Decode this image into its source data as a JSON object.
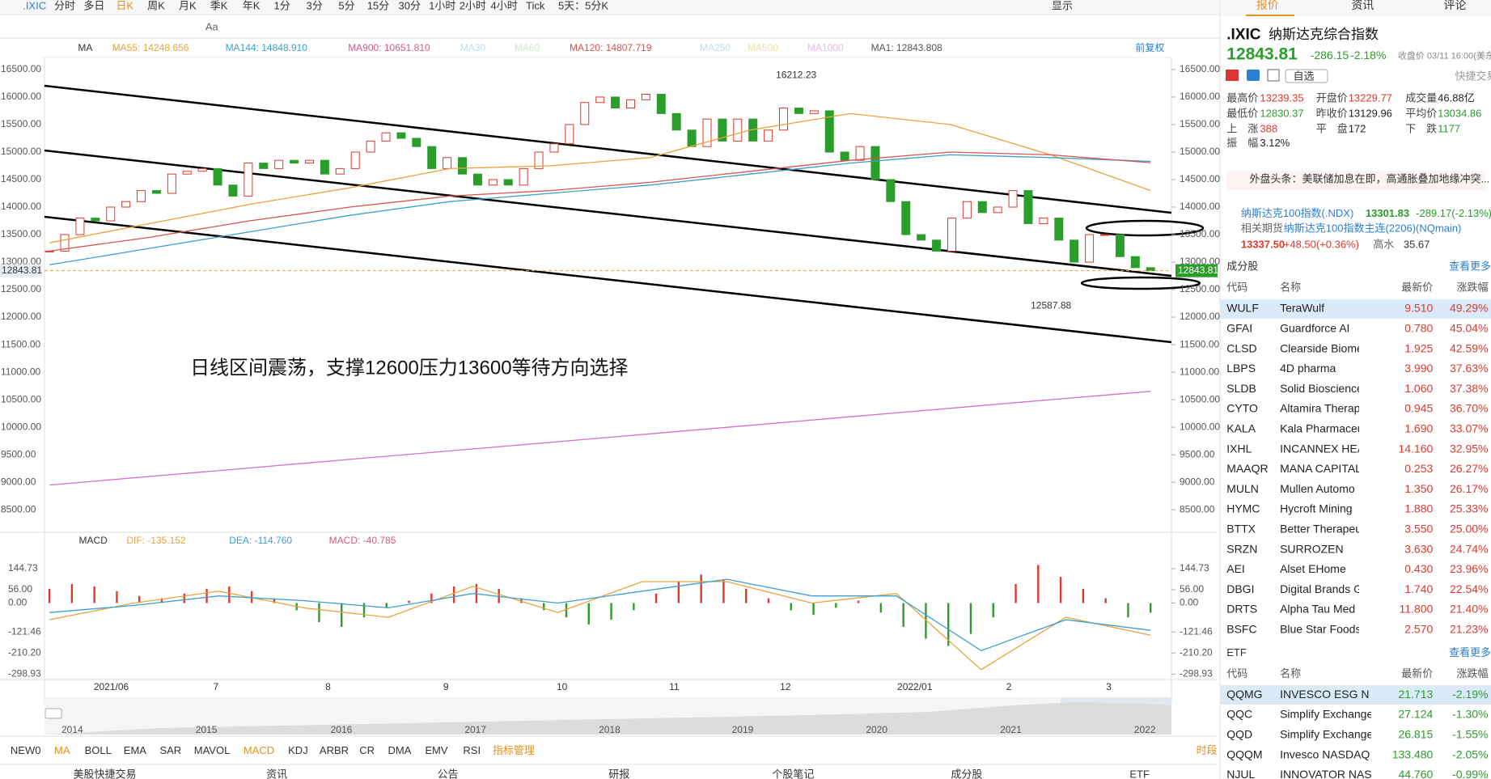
{
  "toolbar": {
    "symbol": ".IXIC",
    "periods": [
      "分时",
      "多日",
      "日K",
      "周K",
      "月K",
      "季K",
      "年K",
      "1分",
      "3分",
      "5分",
      "15分",
      "30分",
      "1小时",
      "2小时",
      "4小时",
      "Tick",
      "5天：5分K"
    ],
    "drawing_text": "Aa",
    "display": "显示"
  },
  "indicators": {
    "ma": "MA",
    "items": [
      {
        "text": "MA55: 14248.656",
        "color": "#e8a33c"
      },
      {
        "text": "MA144: 14848.910",
        "color": "#3aa0d0"
      },
      {
        "text": "MA900: 10651.810",
        "color": "#d4588a"
      },
      {
        "text": "MA30",
        "color": "#b8dff0"
      },
      {
        "text": "MA60",
        "color": "#c8e8c8"
      },
      {
        "text": "MA120: 14807.719",
        "color": "#d9534f"
      },
      {
        "text": "MA250",
        "color": "#b8dff0"
      },
      {
        "text": "MA500",
        "color": "#f0dca8"
      },
      {
        "text": "MA1000",
        "color": "#f0b8d8"
      },
      {
        "text": "MA1: 12843.808",
        "color": "#555555"
      }
    ],
    "adjust": "前复权"
  },
  "chart_data": [
    {
      "type": "candlestick",
      "up_color": "#e0382c",
      "down_color": "#2a9d2a",
      "closes": [
        13200,
        13500,
        13800,
        13750,
        14000,
        14100,
        14300,
        14250,
        14600,
        14650,
        14700,
        14400,
        14200,
        14800,
        14700,
        14850,
        14800,
        14850,
        14600,
        14700,
        15000,
        15200,
        15350,
        15250,
        15100,
        14700,
        14900,
        14600,
        14400,
        14500,
        14400,
        14700,
        15000,
        15150,
        15500,
        15900,
        16000,
        15800,
        15950,
        16050,
        15700,
        15400,
        15100,
        15600,
        15200,
        15600,
        15200,
        15400,
        15800,
        15700,
        15750,
        15000,
        14850,
        15100,
        14500,
        14100,
        13500,
        13400,
        13200,
        13800,
        14100,
        13900,
        14000,
        14300,
        13700,
        13800,
        13400,
        13000,
        13500,
        13500,
        13100,
        12900,
        12843.81
      ],
      "ma_lines": [
        {
          "color": "#e8a33c",
          "values": [
            13350,
            13700,
            14050,
            14350,
            14700,
            14750,
            14900,
            15400,
            15700,
            15500,
            14950,
            14300
          ]
        },
        {
          "color": "#3aa0d0",
          "values": [
            12950,
            13250,
            13550,
            13850,
            14100,
            14250,
            14400,
            14600,
            14800,
            14950,
            14900,
            14830
          ]
        },
        {
          "color": "#d9534f",
          "values": [
            13200,
            13450,
            13750,
            14000,
            14200,
            14300,
            14450,
            14650,
            14850,
            15000,
            14950,
            14807
          ]
        },
        {
          "color": "#d070d0",
          "values": [
            8950,
            9105,
            9260,
            9415,
            9570,
            9725,
            9880,
            10035,
            10190,
            10345,
            10500,
            10652
          ]
        }
      ],
      "ylim": [
        8140,
        16640
      ],
      "yticks": [
        {
          "value": 16500,
          "label": "16500.00"
        },
        {
          "value": 16000,
          "label": "16000.00"
        },
        {
          "value": 15500,
          "label": "15500.00"
        },
        {
          "value": 15000,
          "label": "15000.00"
        },
        {
          "value": 14500,
          "label": "14500.00"
        },
        {
          "value": 14000,
          "label": "14000.00"
        },
        {
          "value": 13500,
          "label": "13500.00"
        },
        {
          "value": 13000,
          "label": "13000.00"
        },
        {
          "value": 12500,
          "label": "12500.00"
        },
        {
          "value": 12000,
          "label": "12000.00"
        },
        {
          "value": 11500,
          "label": "11500.00"
        },
        {
          "value": 11000,
          "label": "11000.00"
        },
        {
          "value": 10500,
          "label": "10500.00"
        },
        {
          "value": 10000,
          "label": "10000.00"
        },
        {
          "value": 9500,
          "label": "9500.00"
        },
        {
          "value": 9000,
          "label": "9000.00"
        },
        {
          "value": 8500,
          "label": "8500.00"
        }
      ],
      "x_labels": [
        "2021/06",
        "7",
        "8",
        "9",
        "10",
        "11",
        "12",
        "2022/01",
        "2",
        "3"
      ],
      "high": 16212.23,
      "low": 12587.88,
      "last": 12843.81,
      "note": "日线区间震荡，支撑12600压力13600等待方向选择"
    },
    {
      "type": "macd",
      "title": "MACD",
      "dif_label": "DIF: -135.152",
      "dea_label": "DEA: -114.760",
      "macd_label": "MACD: -40.785",
      "dif_color": "#e8a33c",
      "dea_color": "#3aa0d0",
      "macd_color": "#d4588a",
      "ylim": [
        -327,
        177
      ],
      "yticks": [
        144.73,
        {
          "value": 56,
          "label": "56.00"
        },
        {
          "value": 0,
          "label": "0.00"
        },
        -121.46,
        {
          "value": -210.2,
          "label": "-210.20"
        },
        -298.93
      ],
      "histogram": [
        60,
        80,
        70,
        50,
        30,
        20,
        40,
        60,
        70,
        50,
        20,
        -30,
        -80,
        -100,
        -60,
        -20,
        10,
        40,
        70,
        80,
        60,
        20,
        -30,
        -60,
        -90,
        -70,
        -30,
        40,
        90,
        120,
        100,
        60,
        20,
        -30,
        -50,
        -20,
        10,
        -40,
        -100,
        -150,
        -180,
        -130,
        -60,
        80,
        160,
        110,
        60,
        20,
        -60,
        -40.785
      ],
      "dif": [
        -70,
        0,
        50,
        -20,
        -60,
        70,
        -40,
        90,
        90,
        0,
        40,
        -280,
        -60,
        -135.152
      ],
      "dea": [
        -40,
        -10,
        30,
        10,
        -20,
        40,
        0,
        50,
        100,
        30,
        30,
        -200,
        -70,
        -114.76
      ]
    }
  ],
  "overview": {
    "years": [
      "2014",
      "2015",
      "2016",
      "2017",
      "2018",
      "2019",
      "2020",
      "2021",
      "2022"
    ]
  },
  "indicator_tabs": {
    "items": [
      {
        "text": "NEW0",
        "active": false
      },
      {
        "text": "MA",
        "active": true
      },
      {
        "text": "BOLL",
        "active": false
      },
      {
        "text": "EMA",
        "active": false
      },
      {
        "text": "SAR",
        "active": false
      },
      {
        "text": "MAVOL",
        "active": false
      },
      {
        "text": "MACD",
        "active": true
      },
      {
        "text": "KDJ",
        "active": false
      },
      {
        "text": "ARBR",
        "active": false
      },
      {
        "text": "CR",
        "active": false
      },
      {
        "text": "DMA",
        "active": false
      },
      {
        "text": "EMV",
        "active": false
      },
      {
        "text": "RSI",
        "active": false
      },
      {
        "text": "指标管理",
        "active": true
      }
    ],
    "period": "时段"
  },
  "bottom_tabs": [
    "美股快捷交易",
    "资讯",
    "公告",
    "研报",
    "个股笔记",
    "成分股",
    "ETF"
  ],
  "panel": {
    "tabs": [
      "报价",
      "资讯",
      "评论"
    ],
    "symbol": ".IXIC",
    "name": "纳斯达克综合指数",
    "price": "12843.81",
    "change": "-286.15",
    "pct": "-2.18%",
    "time": "收盘价 03/11 16:00(美东)",
    "watch": "自选",
    "quick_trade": "快捷交易",
    "stats": [
      {
        "label": "最高价",
        "value": "13239.35",
        "color": "#e0382c"
      },
      {
        "label": "开盘价",
        "value": "13229.77",
        "color": "#e0382c"
      },
      {
        "label": "成交量",
        "value": "46.88亿",
        "color": "#222222"
      },
      {
        "label": "最低价",
        "value": "12830.37",
        "color": "#2a9d2a"
      },
      {
        "label": "昨收价",
        "value": "13129.96",
        "color": "#222222"
      },
      {
        "label": "平均价",
        "value": "13034.86",
        "color": "#2a9d2a"
      },
      {
        "label": "上　涨",
        "value": "388",
        "color": "#e0382c"
      },
      {
        "label": "平　盘",
        "value": "172",
        "color": "#222222"
      },
      {
        "label": "下　跌",
        "value": "1177",
        "color": "#2a9d2a"
      },
      {
        "label": "振　幅",
        "value": "3.12%",
        "color": "#222222"
      }
    ],
    "news": "外盘头条：美联储加息在即，高通胀叠加地缘冲突...",
    "related": {
      "ndx_name": "纳斯达克100指数(.NDX)",
      "ndx_price": "13301.83",
      "ndx_change": "-289.17(-2.13%)",
      "futures_label": "相关期货",
      "futures_name": "纳斯达克100指数主连(2206)(NQmain)",
      "futures_price": "13337.50",
      "futures_change": "+48.50(+0.36%)",
      "premium_label": "高水",
      "premium": "35.67"
    },
    "constituents": {
      "title": "成分股",
      "more": "查看更多",
      "header": [
        "代码",
        "名称",
        "最新价",
        "涨跌幅"
      ],
      "rows": [
        [
          "WULF",
          "TeraWulf",
          "9.510",
          "49.29%"
        ],
        [
          "GFAI",
          "Guardforce AI",
          "0.780",
          "45.04%"
        ],
        [
          "CLSD",
          "Clearside Biome",
          "1.925",
          "42.59%"
        ],
        [
          "LBPS",
          "4D pharma",
          "3.990",
          "37.63%"
        ],
        [
          "SLDB",
          "Solid Bioscience",
          "1.060",
          "37.38%"
        ],
        [
          "CYTO",
          "Altamira Therap",
          "0.945",
          "36.70%"
        ],
        [
          "KALA",
          "Kala Pharmaceu",
          "1.690",
          "33.07%"
        ],
        [
          "IXHL",
          "INCANNEX HEA",
          "14.160",
          "32.95%"
        ],
        [
          "MAAQR",
          "MANA CAPITAL",
          "0.253",
          "26.27%"
        ],
        [
          "MULN",
          "Mullen Automo",
          "1.350",
          "26.17%"
        ],
        [
          "HYMC",
          "Hycroft Mining",
          "1.880",
          "25.33%"
        ],
        [
          "BTTX",
          "Better Therapeu",
          "3.550",
          "25.00%"
        ],
        [
          "SRZN",
          "SURROZEN",
          "3.630",
          "24.74%"
        ],
        [
          "AEI",
          "Alset EHome",
          "0.430",
          "23.96%"
        ],
        [
          "DBGI",
          "Digital Brands G",
          "1.740",
          "22.54%"
        ],
        [
          "DRTS",
          "Alpha Tau Med",
          "11.800",
          "21.40%"
        ],
        [
          "BSFC",
          "Blue Star Foods",
          "2.570",
          "21.23%"
        ]
      ]
    },
    "etf": {
      "title": "ETF",
      "more": "查看更多",
      "header": [
        "代码",
        "名称",
        "最新价",
        "涨跌幅"
      ],
      "rows": [
        [
          "QQMG",
          "INVESCO ESG N",
          "21.713",
          "-2.19%"
        ],
        [
          "QQC",
          "Simplify Exchange",
          "27.124",
          "-1.30%"
        ],
        [
          "QQD",
          "Simplify Exchange",
          "26.815",
          "-1.55%"
        ],
        [
          "QQQM",
          "Invesco NASDAQ",
          "133.480",
          "-2.05%"
        ],
        [
          "NJUL",
          "INNOVATOR NAS",
          "44.760",
          "-0.99%"
        ]
      ]
    }
  }
}
